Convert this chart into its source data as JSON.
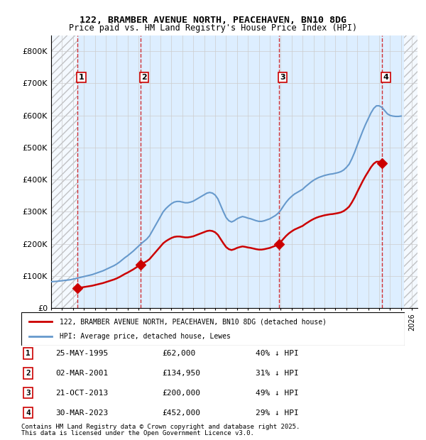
{
  "title1": "122, BRAMBER AVENUE NORTH, PEACEHAVEN, BN10 8DG",
  "title2": "Price paid vs. HM Land Registry's House Price Index (HPI)",
  "ylabel": "",
  "ylim": [
    0,
    850000
  ],
  "yticks": [
    0,
    100000,
    200000,
    300000,
    400000,
    500000,
    600000,
    700000,
    800000
  ],
  "ytick_labels": [
    "£0",
    "£100K",
    "£200K",
    "£300K",
    "£400K",
    "£500K",
    "£600K",
    "£700K",
    "£800K"
  ],
  "xlim_start": 1993.0,
  "xlim_end": 2026.5,
  "hatch_left_end": 1995.41,
  "hatch_right_start": 2025.25,
  "sale_dates": [
    1995.41,
    2001.17,
    2013.81,
    2023.25
  ],
  "sale_prices": [
    62000,
    134950,
    200000,
    452000
  ],
  "sale_labels": [
    "1",
    "2",
    "3",
    "4"
  ],
  "legend_line1": "122, BRAMBER AVENUE NORTH, PEACEHAVEN, BN10 8DG (detached house)",
  "legend_line2": "HPI: Average price, detached house, Lewes",
  "table_rows": [
    [
      "1",
      "25-MAY-1995",
      "£62,000",
      "40% ↓ HPI"
    ],
    [
      "2",
      "02-MAR-2001",
      "£134,950",
      "31% ↓ HPI"
    ],
    [
      "3",
      "21-OCT-2013",
      "£200,000",
      "49% ↓ HPI"
    ],
    [
      "4",
      "30-MAR-2023",
      "£452,000",
      "29% ↓ HPI"
    ]
  ],
  "footnote1": "Contains HM Land Registry data © Crown copyright and database right 2025.",
  "footnote2": "This data is licensed under the Open Government Licence v3.0.",
  "red_color": "#cc0000",
  "blue_color": "#6699cc",
  "light_blue_bg": "#ddeeff",
  "hatch_color": "#aaaaaa",
  "grid_color": "#cccccc",
  "hpi_data_x": [
    1993.0,
    1993.25,
    1993.5,
    1993.75,
    1994.0,
    1994.25,
    1994.5,
    1994.75,
    1995.0,
    1995.25,
    1995.5,
    1995.75,
    1996.0,
    1996.25,
    1996.5,
    1996.75,
    1997.0,
    1997.25,
    1997.5,
    1997.75,
    1998.0,
    1998.25,
    1998.5,
    1998.75,
    1999.0,
    1999.25,
    1999.5,
    1999.75,
    2000.0,
    2000.25,
    2000.5,
    2000.75,
    2001.0,
    2001.25,
    2001.5,
    2001.75,
    2002.0,
    2002.25,
    2002.5,
    2002.75,
    2003.0,
    2003.25,
    2003.5,
    2003.75,
    2004.0,
    2004.25,
    2004.5,
    2004.75,
    2005.0,
    2005.25,
    2005.5,
    2005.75,
    2006.0,
    2006.25,
    2006.5,
    2006.75,
    2007.0,
    2007.25,
    2007.5,
    2007.75,
    2008.0,
    2008.25,
    2008.5,
    2008.75,
    2009.0,
    2009.25,
    2009.5,
    2009.75,
    2010.0,
    2010.25,
    2010.5,
    2010.75,
    2011.0,
    2011.25,
    2011.5,
    2011.75,
    2012.0,
    2012.25,
    2012.5,
    2012.75,
    2013.0,
    2013.25,
    2013.5,
    2013.75,
    2014.0,
    2014.25,
    2014.5,
    2014.75,
    2015.0,
    2015.25,
    2015.5,
    2015.75,
    2016.0,
    2016.25,
    2016.5,
    2016.75,
    2017.0,
    2017.25,
    2017.5,
    2017.75,
    2018.0,
    2018.25,
    2018.5,
    2018.75,
    2019.0,
    2019.25,
    2019.5,
    2019.75,
    2020.0,
    2020.25,
    2020.5,
    2020.75,
    2021.0,
    2021.25,
    2021.5,
    2021.75,
    2022.0,
    2022.25,
    2022.5,
    2022.75,
    2023.0,
    2023.25,
    2023.5,
    2023.75,
    2024.0,
    2024.25,
    2024.5,
    2024.75,
    2025.0
  ],
  "hpi_data_y": [
    82000,
    82500,
    83000,
    84000,
    85000,
    86000,
    87000,
    88000,
    90000,
    92000,
    94000,
    96000,
    98000,
    100000,
    102000,
    104000,
    107000,
    110000,
    113000,
    116000,
    120000,
    124000,
    128000,
    132000,
    137000,
    143000,
    150000,
    157000,
    163000,
    170000,
    177000,
    185000,
    193000,
    201000,
    208000,
    215000,
    225000,
    240000,
    255000,
    270000,
    285000,
    300000,
    310000,
    318000,
    325000,
    330000,
    332000,
    332000,
    330000,
    328000,
    328000,
    330000,
    333000,
    338000,
    343000,
    348000,
    353000,
    358000,
    360000,
    358000,
    352000,
    340000,
    320000,
    300000,
    282000,
    272000,
    268000,
    272000,
    278000,
    282000,
    285000,
    283000,
    280000,
    278000,
    275000,
    272000,
    270000,
    270000,
    272000,
    275000,
    278000,
    283000,
    288000,
    295000,
    305000,
    318000,
    330000,
    340000,
    348000,
    355000,
    360000,
    365000,
    370000,
    378000,
    385000,
    392000,
    398000,
    403000,
    407000,
    410000,
    413000,
    415000,
    417000,
    418000,
    420000,
    422000,
    425000,
    430000,
    438000,
    448000,
    465000,
    485000,
    508000,
    530000,
    552000,
    572000,
    590000,
    608000,
    622000,
    630000,
    630000,
    625000,
    615000,
    605000,
    600000,
    598000,
    597000,
    597000,
    598000
  ]
}
